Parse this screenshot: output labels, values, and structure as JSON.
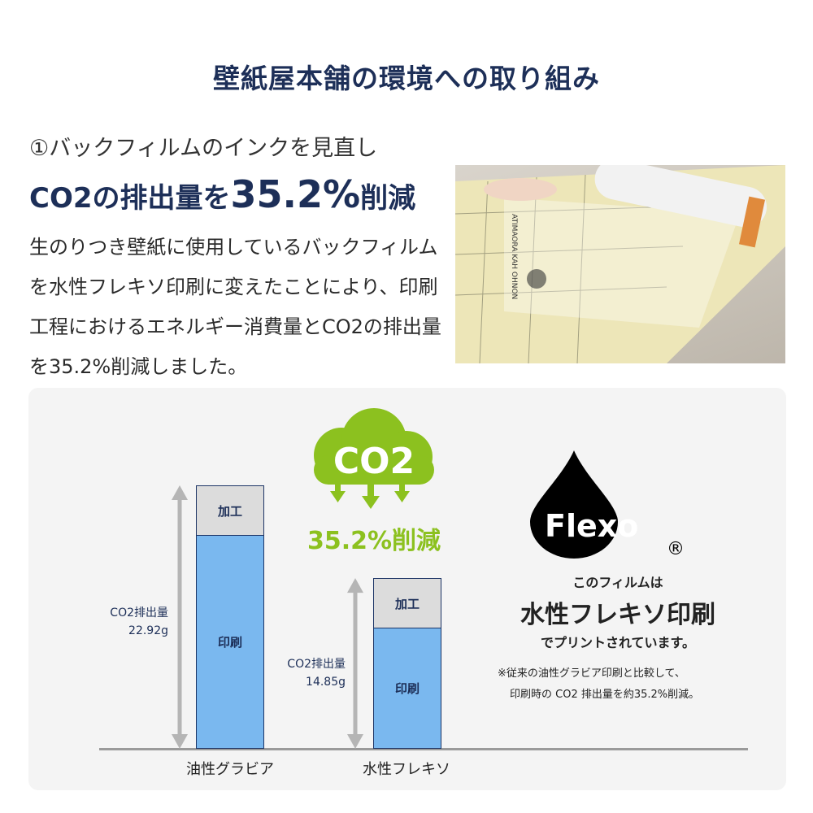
{
  "title": "壁紙屋本舗の環境への取り組み",
  "section": {
    "subtitle": "①バックフィルムのインクを見直し",
    "headline_pre": "CO2の排出量を",
    "headline_value": "35.2%",
    "headline_post": "削減",
    "body": "生のりつき壁紙に使用しているバックフィルムを水性フレキソ印刷に変えたことにより、印刷工程におけるエネルギー消費量とCO2の排出量を35.2%削減しました。"
  },
  "photo": {
    "printed_text": "ATIMAORA KAH OHNON"
  },
  "infographic": {
    "cloud_label": "CO2",
    "reduction": "35.2%削減",
    "colors": {
      "green": "#8cc11f",
      "navy": "#1d2f58",
      "bar_blue": "#7ab8ef",
      "bar_gray": "#dcdcdc"
    }
  },
  "chart_data": {
    "type": "bar",
    "stacked": true,
    "categories": [
      "油性グラビア",
      "水性フレキソ"
    ],
    "values": [
      22.92,
      14.85
    ],
    "unit": "g",
    "segments": [
      "加工",
      "印刷"
    ],
    "value_labels": [
      "CO2排出量\n22.92g",
      "CO2排出量\n14.85g"
    ],
    "label_line1": "CO2排出量",
    "label_values": [
      "22.92g",
      "14.85g"
    ]
  },
  "flexo": {
    "logo_text": "Flexo",
    "registered": "®",
    "line1": "このフィルムは",
    "line2": "水性フレキソ印刷",
    "line3": "でプリントされています。",
    "note1": "※従来の油性グラビア印刷と比較して、",
    "note2": "印刷時の CO2 排出量を約35.2%削減。"
  }
}
